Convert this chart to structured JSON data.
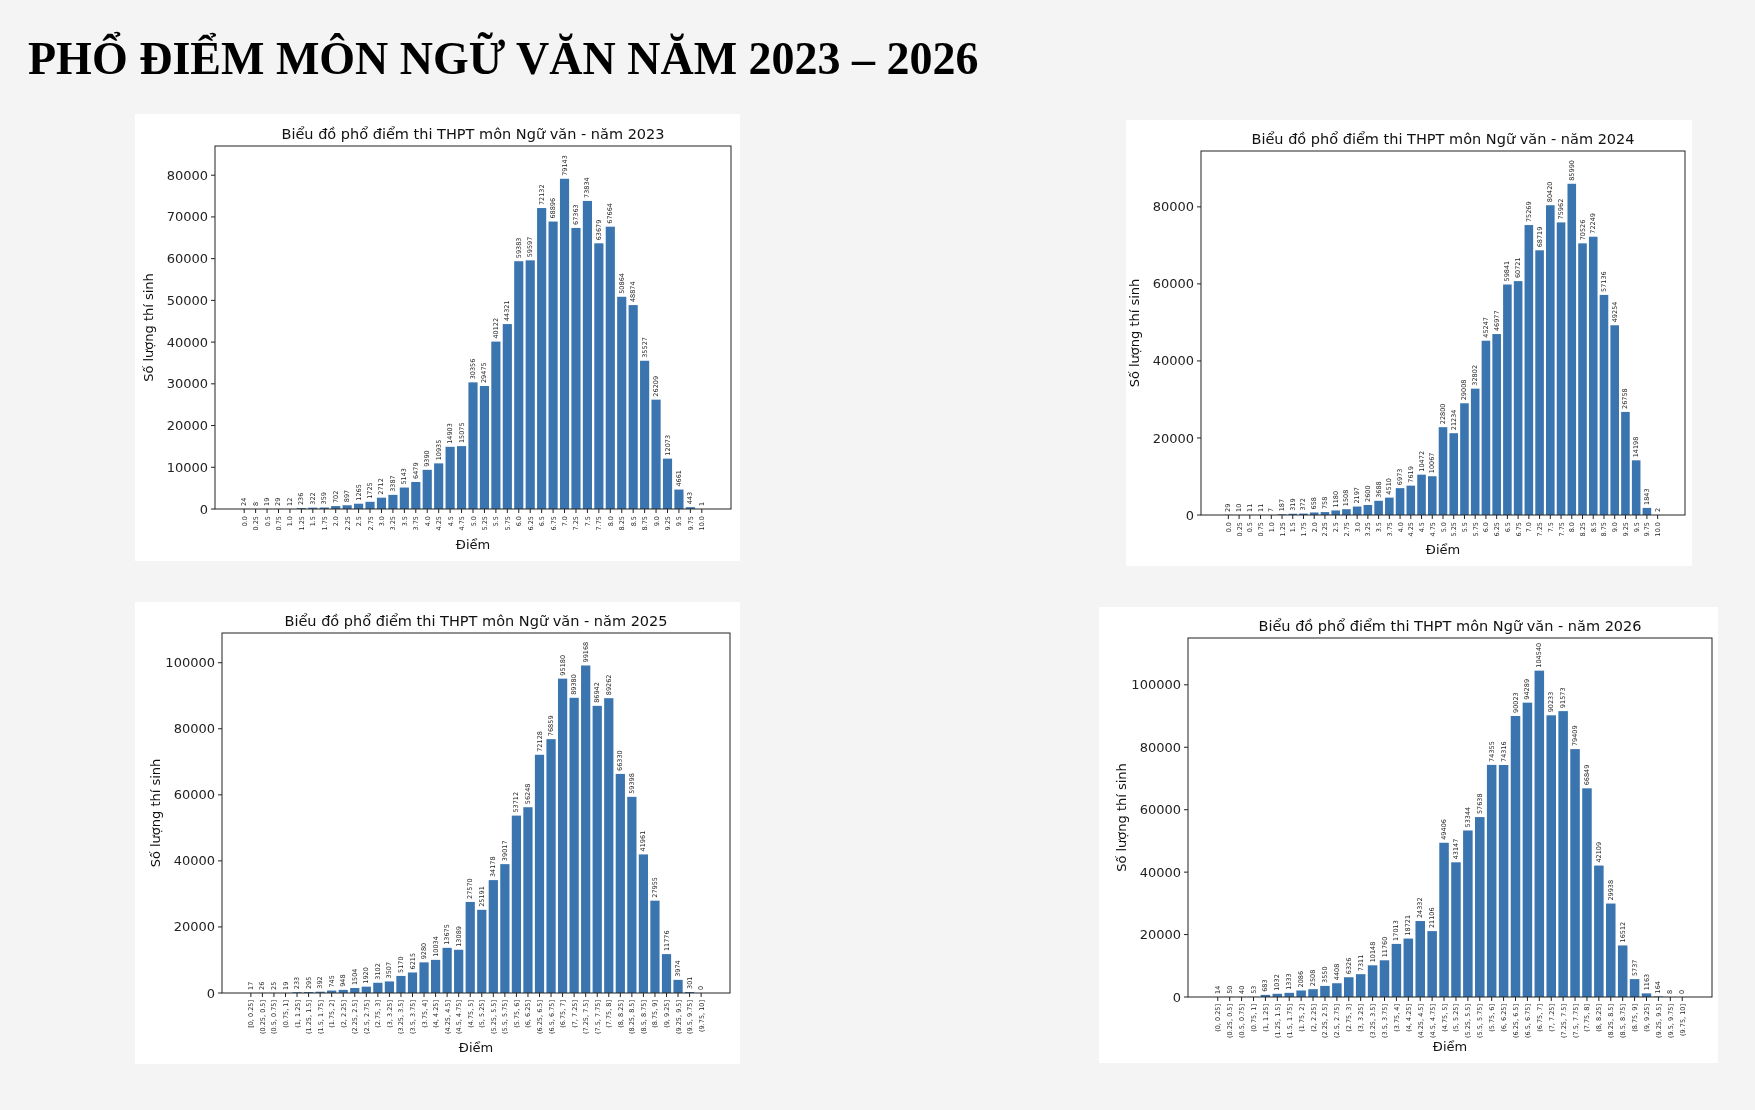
{
  "chart_data": [
    {
      "type": "bar",
      "title": "Biểu đồ phổ điểm thi THPT môn Ngữ văn - năm 2023",
      "xlabel": "Điểm",
      "ylabel": "Số lượng thí sinh",
      "annotations": [
        "PHỔ ĐIỂM MÔN NGỮ VĂN NĂM 2023 – 2026"
      ],
      "categories": [
        "0.0",
        "0.25",
        "0.5",
        "0.75",
        "1.0",
        "1.25",
        "1.5",
        "1.75",
        "2.0",
        "2.25",
        "2.5",
        "2.75",
        "3.0",
        "3.25",
        "3.5",
        "3.75",
        "4.0",
        "4.25",
        "4.5",
        "4.75",
        "5.0",
        "5.25",
        "5.5",
        "5.75",
        "6.0",
        "6.25",
        "6.5",
        "6.75",
        "7.0",
        "7.25",
        "7.5",
        "7.75",
        "8.0",
        "8.25",
        "8.5",
        "8.75",
        "9.0",
        "9.25",
        "9.5",
        "9.75",
        "10.0"
      ],
      "values": [
        24,
        8,
        19,
        29,
        12,
        236,
        322,
        359,
        702,
        897,
        1265,
        1725,
        2712,
        3387,
        5143,
        6479,
        9390,
        10935,
        14903,
        15075,
        30356,
        29475,
        40122,
        44321,
        59383,
        59597,
        72132,
        68896,
        79143,
        67363,
        73834,
        63679,
        67664,
        50864,
        48874,
        35527,
        26209,
        12073,
        4661,
        443,
        1
      ],
      "color": "#3a75af",
      "ylim": [
        0,
        87000
      ],
      "yticks": [
        0,
        10000,
        20000,
        30000,
        40000,
        50000,
        60000,
        70000,
        80000
      ],
      "data_labels": true
    },
    {
      "type": "bar",
      "title": "Biểu đồ phổ điểm thi THPT môn Ngữ văn - năm 2024",
      "xlabel": "Điểm",
      "ylabel": "Số lượng thí sinh",
      "categories": [
        "0.0",
        "0.25",
        "0.5",
        "0.75",
        "1.0",
        "1.25",
        "1.5",
        "1.75",
        "2.0",
        "2.25",
        "2.5",
        "2.75",
        "3.0",
        "3.25",
        "3.5",
        "3.75",
        "4.0",
        "4.25",
        "4.5",
        "4.75",
        "5.0",
        "5.25",
        "5.5",
        "5.75",
        "6.0",
        "6.25",
        "6.5",
        "6.75",
        "7.0",
        "7.25",
        "7.5",
        "7.75",
        "8.0",
        "8.25",
        "8.5",
        "8.75",
        "9.0",
        "9.25",
        "9.5",
        "9.75",
        "10.0"
      ],
      "values": [
        29,
        10,
        11,
        11,
        7,
        187,
        319,
        372,
        658,
        758,
        1180,
        1508,
        2197,
        2600,
        3688,
        4510,
        6973,
        7619,
        10472,
        10067,
        22800,
        21234,
        29008,
        32802,
        45247,
        46977,
        59841,
        60721,
        75269,
        68719,
        80420,
        75962,
        85990,
        70526,
        72249,
        57136,
        49254,
        26758,
        14198,
        1843,
        2
      ],
      "color": "#3a75af",
      "ylim": [
        0,
        94500
      ],
      "yticks": [
        0,
        20000,
        40000,
        60000,
        80000
      ],
      "data_labels": true
    },
    {
      "type": "bar",
      "title": "Biểu đồ phổ điểm thi THPT môn Ngữ văn - năm 2025",
      "xlabel": "Điểm",
      "ylabel": "Số lượng thí sinh",
      "categories": [
        "[0, 0.25]",
        "(0.25, 0.5]",
        "(0.5, 0.75]",
        "(0.75, 1]",
        "(1, 1.25]",
        "(1.25, 1.5]",
        "(1.5, 1.75]",
        "(1.75, 2]",
        "(2, 2.25]",
        "(2.25, 2.5]",
        "(2.5, 2.75]",
        "(2.75, 3]",
        "(3, 3.25]",
        "(3.25, 3.5]",
        "(3.5, 3.75]",
        "(3.75, 4]",
        "(4, 4.25]",
        "(4.25, 4.5]",
        "(4.5, 4.75]",
        "(4.75, 5]",
        "(5, 5.25]",
        "(5.25, 5.5]",
        "(5.5, 5.75]",
        "(5.75, 6]",
        "(6, 6.25]",
        "(6.25, 6.5]",
        "(6.5, 6.75]",
        "(6.75, 7]",
        "(7, 7.25]",
        "(7.25, 7.5]",
        "(7.5, 7.75]",
        "(7.75, 8]",
        "(8, 8.25]",
        "(8.25, 8.5]",
        "(8.5, 8.75]",
        "(8.75, 9]",
        "(9, 9.25]",
        "(9.25, 9.5]",
        "(9.5, 9.75]",
        "(9.75, 10]"
      ],
      "values": [
        17,
        26,
        25,
        19,
        233,
        295,
        392,
        745,
        948,
        1504,
        1920,
        3102,
        3507,
        5170,
        6215,
        9280,
        10034,
        13675,
        13089,
        27570,
        25191,
        34178,
        39017,
        53712,
        56248,
        72128,
        76859,
        95180,
        89380,
        99168,
        86942,
        89262,
        66330,
        59398,
        41961,
        27955,
        11776,
        3974,
        301,
        0
      ],
      "color": "#3a75af",
      "ylim": [
        0,
        109000
      ],
      "yticks": [
        0,
        20000,
        40000,
        60000,
        80000,
        100000
      ],
      "data_labels": true
    },
    {
      "type": "bar",
      "title": "Biểu đồ phổ điểm thi THPT môn Ngữ văn - năm 2026",
      "xlabel": "Điểm",
      "ylabel": "Số lượng thí sinh",
      "categories": [
        "(0, 0.25]",
        "(0.25, 0.5]",
        "(0.5, 0.75]",
        "(0.75, 1]",
        "(1, 1.25]",
        "(1.25, 1.5]",
        "(1.5, 1.75]",
        "(1.75, 2]",
        "(2, 2.25]",
        "(2.25, 2.5]",
        "(2.5, 2.75]",
        "(2.75, 3]",
        "(3, 3.25]",
        "(3.25, 3.5]",
        "(3.5, 3.75]",
        "(3.75, 4]",
        "(4, 4.25]",
        "(4.25, 4.5]",
        "(4.5, 4.75]",
        "(4.75, 5]",
        "(5, 5.25]",
        "(5.25, 5.5]",
        "(5.5, 5.75]",
        "(5.75, 6]",
        "(6, 6.25]",
        "(6.25, 6.5]",
        "(6.5, 6.75]",
        "(6.75, 7]",
        "(7, 7.25]",
        "(7.25, 7.5]",
        "(7.5, 7.75]",
        "(7.75, 8]",
        "(8, 8.25]",
        "(8.25, 8.5]",
        "(8.5, 8.75]",
        "(8.75, 9]",
        "(9, 9.25]",
        "(9.25, 9.5]",
        "(9.5, 9.75]",
        "(9.75, 10]"
      ],
      "values": [
        14,
        50,
        40,
        53,
        683,
        1032,
        1333,
        2086,
        2508,
        3550,
        4408,
        6326,
        7311,
        10148,
        11760,
        17013,
        18721,
        24332,
        21106,
        49406,
        43147,
        53344,
        57638,
        74355,
        74316,
        90023,
        94289,
        104540,
        90233,
        91573,
        79409,
        66849,
        42109,
        29938,
        16512,
        5737,
        1163,
        164,
        8,
        0
      ],
      "color": "#3a75af",
      "ylim": [
        0,
        115000
      ],
      "yticks": [
        0,
        20000,
        40000,
        60000,
        80000,
        100000
      ],
      "data_labels": true
    }
  ]
}
